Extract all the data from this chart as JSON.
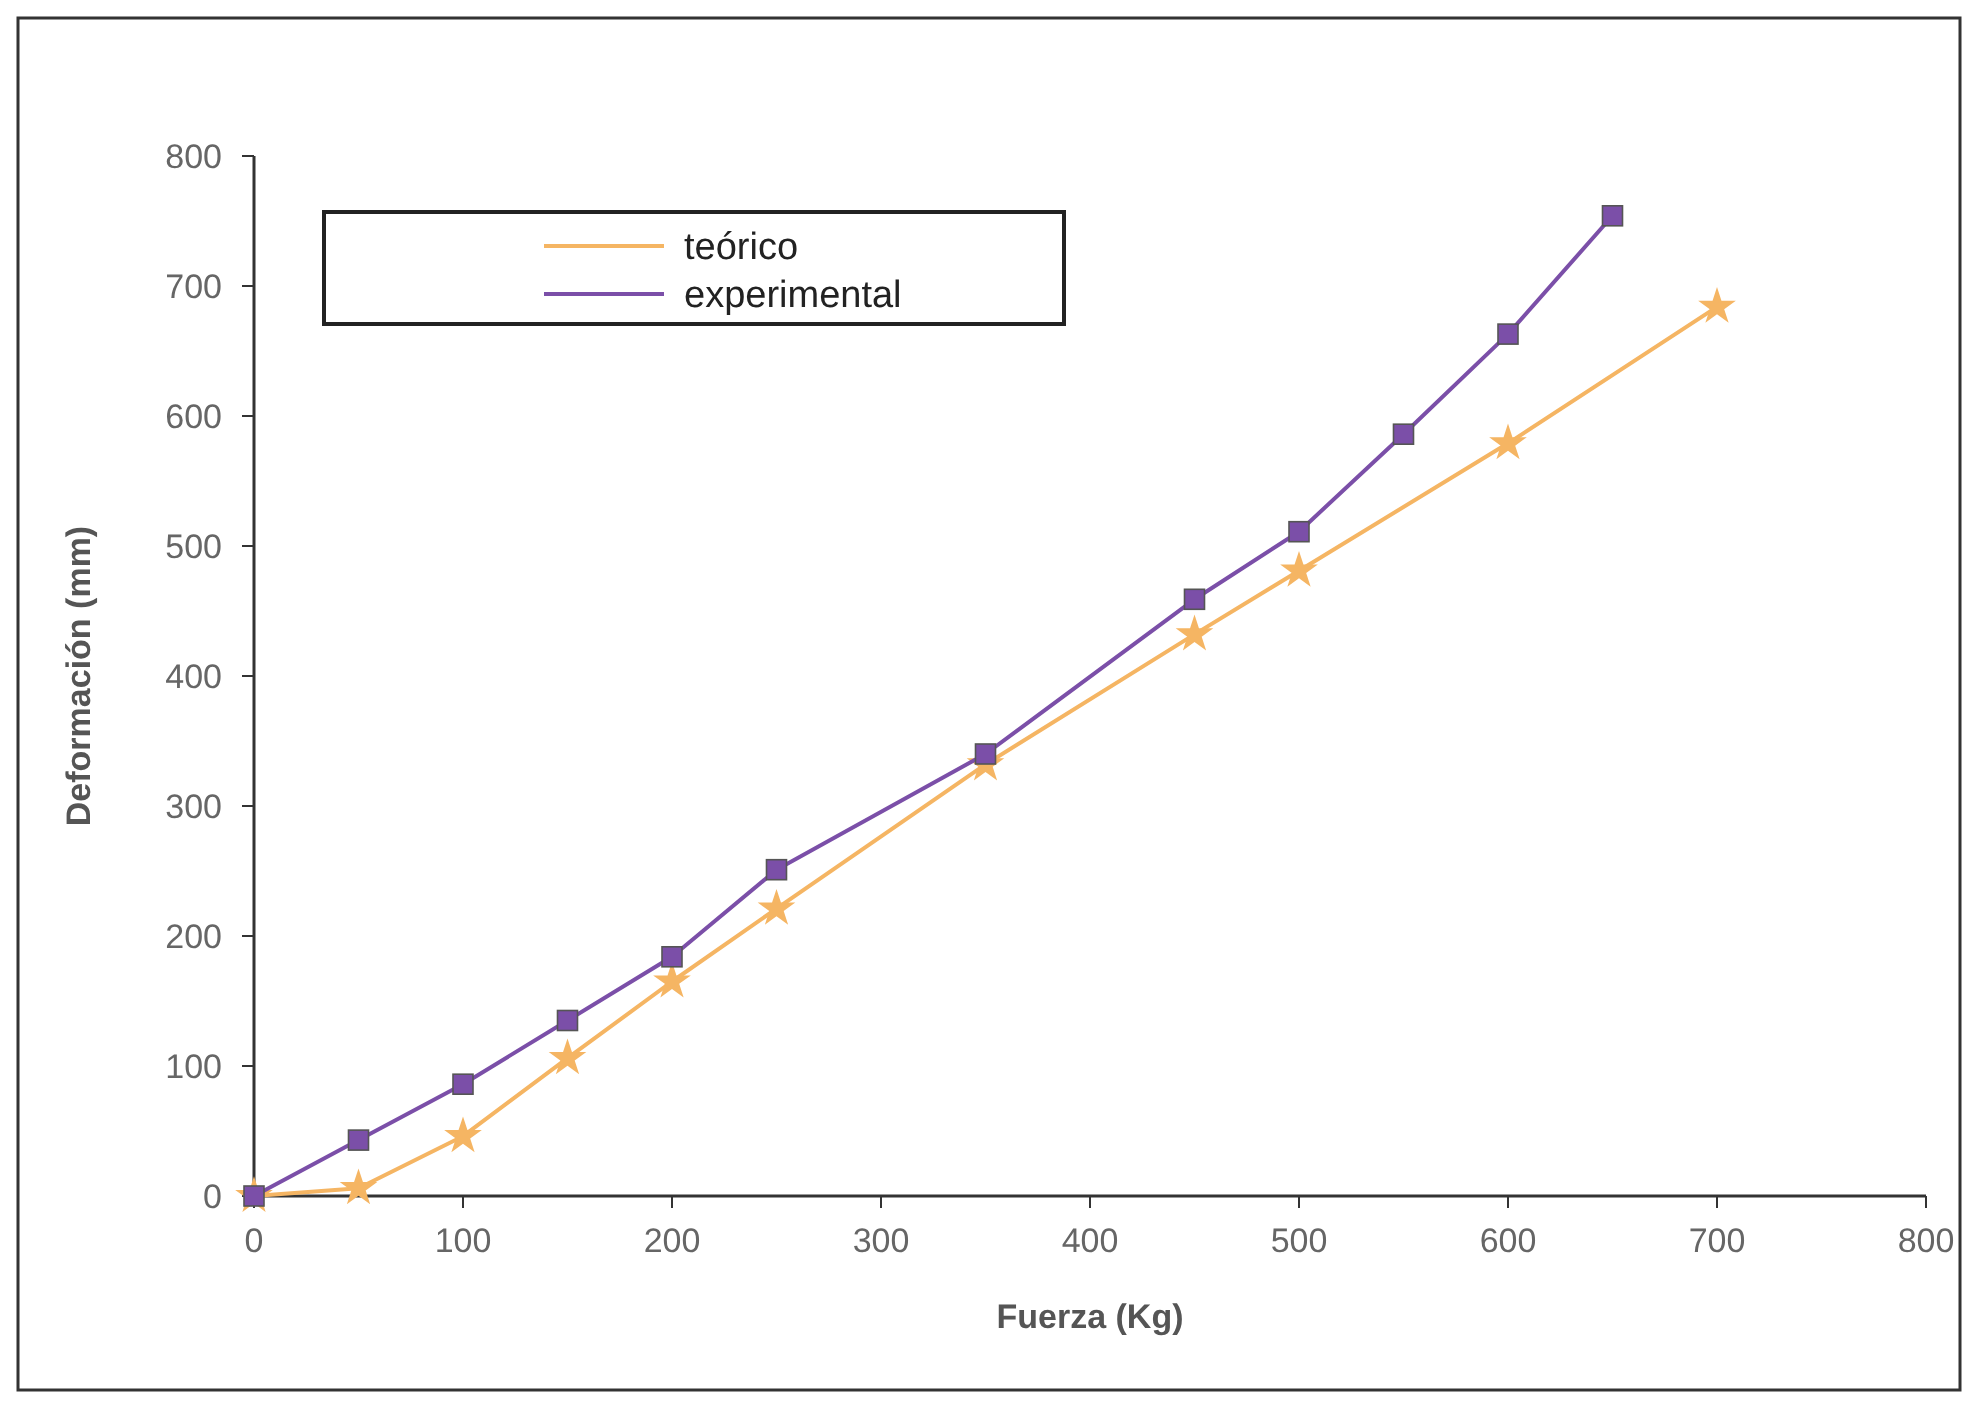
{
  "chart_data": {
    "type": "line",
    "xlabel": "Fuerza (Kg)",
    "ylabel": "Deformación (mm)",
    "xlim": [
      0,
      800
    ],
    "xticks": [
      0,
      100,
      200,
      300,
      400,
      500,
      600,
      700,
      800
    ],
    "ylim": [
      0,
      800
    ],
    "yticks": [
      0,
      100,
      200,
      300,
      400,
      500,
      600,
      700,
      800
    ],
    "grid": false,
    "legend": "top left",
    "series": [
      {
        "name": "teórico",
        "color": "#f5b563",
        "marker": "star",
        "x": [
          0,
          50,
          100,
          150,
          200,
          250,
          350,
          450,
          500,
          600,
          700
        ],
        "values": [
          0,
          6,
          46,
          106,
          165,
          221,
          332,
          432,
          481,
          579,
          684
        ]
      },
      {
        "name": "experimental",
        "color": "#7b4fa8",
        "marker": "square",
        "x": [
          0,
          50,
          100,
          150,
          200,
          250,
          350,
          450,
          500,
          550,
          600,
          650
        ],
        "values": [
          0,
          43,
          86,
          135,
          184,
          251,
          340,
          459,
          511,
          586,
          663,
          754
        ]
      }
    ]
  }
}
